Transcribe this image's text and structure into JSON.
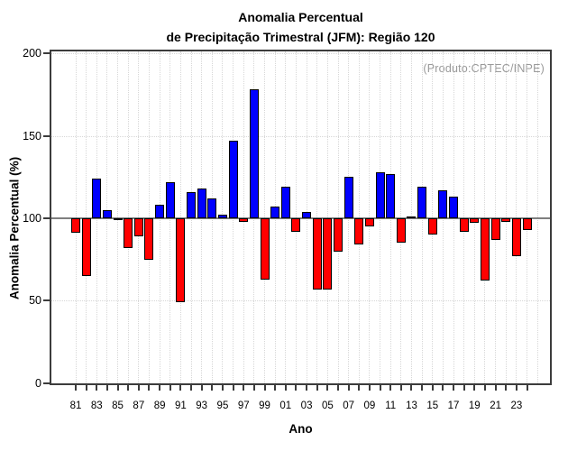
{
  "title": {
    "line1": "Anomalia Percentual",
    "line2": "de Precipitação Trimestral (JFM): Região 120"
  },
  "annotation": "(Produto:CPTEC/INPE)",
  "axes": {
    "y_label": "Anomalia Percentual (%)",
    "x_label": "Ano",
    "y_tick_labels": [
      "0",
      "50",
      "100",
      "150",
      "200"
    ],
    "x_tick_labels": [
      "81",
      "83",
      "85",
      "87",
      "89",
      "91",
      "93",
      "95",
      "97",
      "99",
      "01",
      "03",
      "05",
      "07",
      "09",
      "11",
      "13",
      "15",
      "17",
      "19",
      "21",
      "23"
    ]
  },
  "colors": {
    "above_baseline": "#0000ff",
    "below_baseline": "#ff0000",
    "baseline_line": "#7f7f7f",
    "grid": "#d7d7d7",
    "frame": "#3c3c3c",
    "annotation_text": "#9a9a9a"
  },
  "chart_data": {
    "type": "bar",
    "title": "Anomalia Percentual de Precipitação Trimestral (JFM): Região 120",
    "xlabel": "Ano",
    "ylabel": "Anomalia Percentual (%)",
    "ylim": [
      0,
      200
    ],
    "y_ticks": [
      0,
      50,
      100,
      150,
      200
    ],
    "baseline": 100,
    "grid": true,
    "legend": "none",
    "categories": [
      "81",
      "82",
      "83",
      "84",
      "85",
      "86",
      "87",
      "88",
      "89",
      "90",
      "91",
      "92",
      "93",
      "94",
      "95",
      "96",
      "97",
      "98",
      "99",
      "00",
      "01",
      "02",
      "03",
      "04",
      "05",
      "06",
      "07",
      "08",
      "09",
      "10",
      "11",
      "12",
      "13",
      "14",
      "15",
      "16",
      "17",
      "18",
      "19",
      "20",
      "21",
      "22",
      "23",
      "24"
    ],
    "values": [
      91,
      65,
      124,
      105,
      99,
      82,
      89,
      75,
      108,
      122,
      49,
      116,
      118,
      112,
      102,
      147,
      98,
      178,
      63,
      107,
      119,
      92,
      104,
      57,
      57,
      80,
      125,
      84,
      95,
      128,
      127,
      85,
      101,
      119,
      90,
      117,
      113,
      92,
      97,
      62,
      87,
      98,
      77,
      93
    ],
    "color_above_baseline": "#0000ff",
    "color_below_baseline": "#ff0000"
  }
}
